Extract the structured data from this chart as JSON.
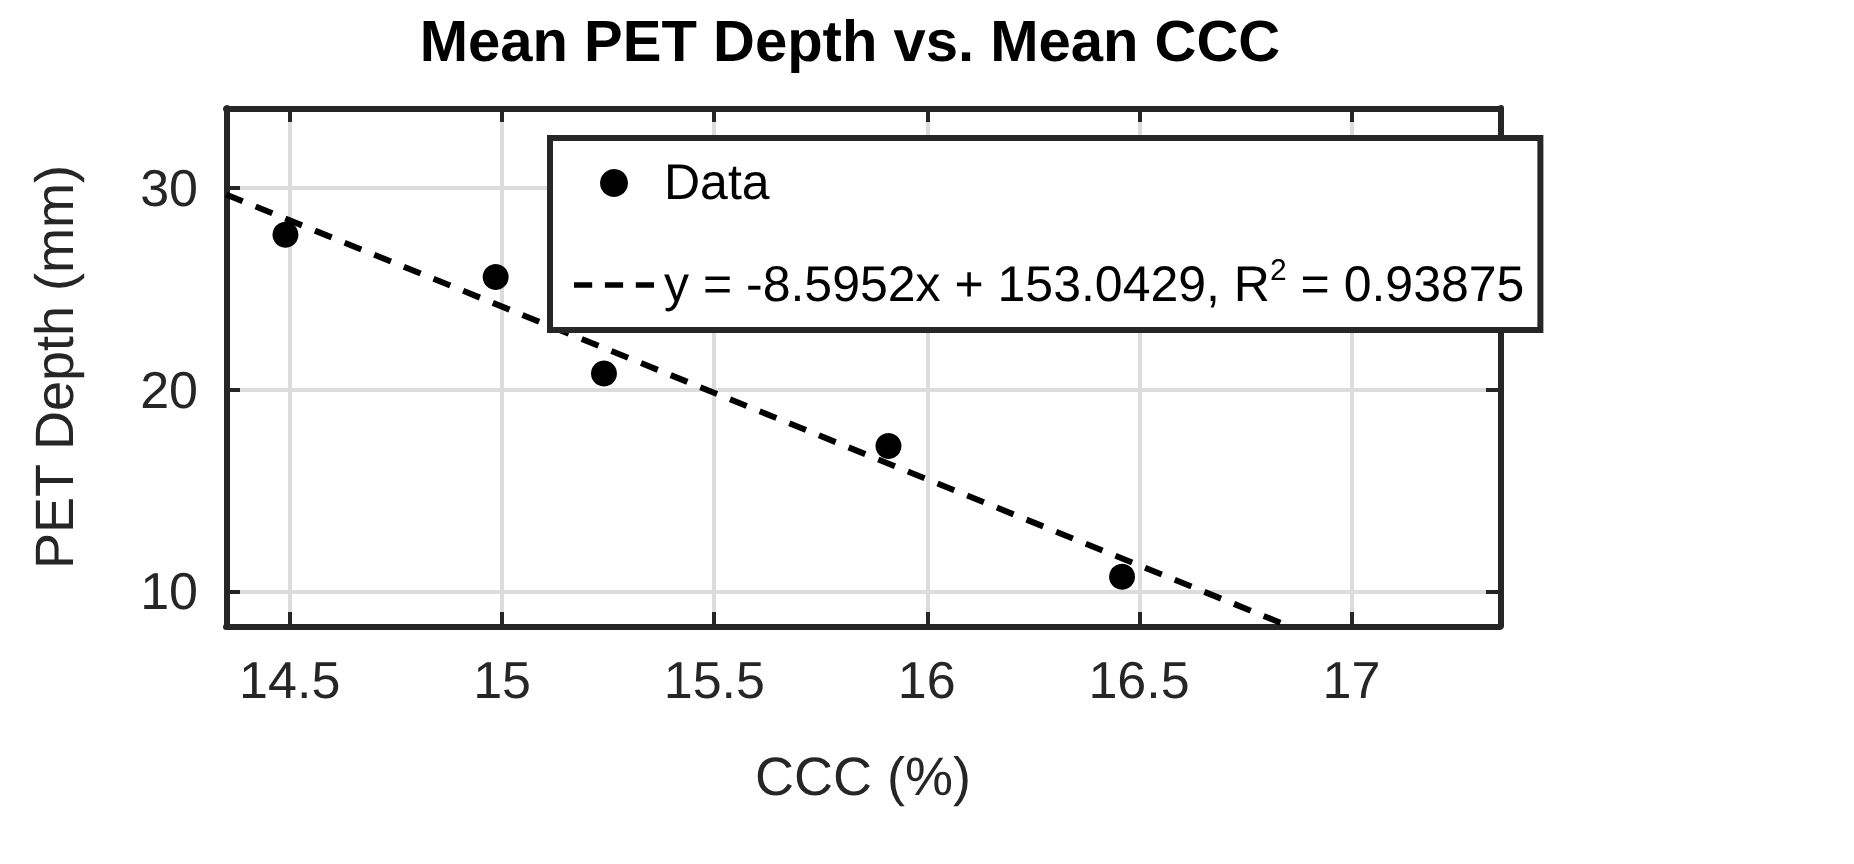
{
  "chart_data": {
    "type": "scatter",
    "title": "Mean PET Depth vs. Mean CCC",
    "xlabel": "CCC (%)",
    "ylabel": "PET Depth (mm)",
    "xlim": [
      14.35,
      17.35
    ],
    "xticks": [
      14.5,
      15,
      15.5,
      16,
      16.5,
      17
    ],
    "ylim": [
      8.25,
      34
    ],
    "yticks": [
      10,
      20,
      30
    ],
    "grid": true,
    "legend": "top right",
    "marker": "circle",
    "series": [
      {
        "name": "Data",
        "color": "#000000",
        "x": [
          14.49,
          14.985,
          15.24,
          15.91,
          16.46
        ],
        "values": [
          27.7,
          25.6,
          20.8,
          17.2,
          10.7
        ]
      },
      {
        "name": "y = -8.5952x + 153.0429, R$^{2}$ = 0.93875",
        "type": "line",
        "line_style": "dashed",
        "marker": "none",
        "color": "#000000",
        "x": [
          14.35,
          16.846
        ],
        "values": [
          29.7,
          8.3
        ]
      }
    ]
  }
}
